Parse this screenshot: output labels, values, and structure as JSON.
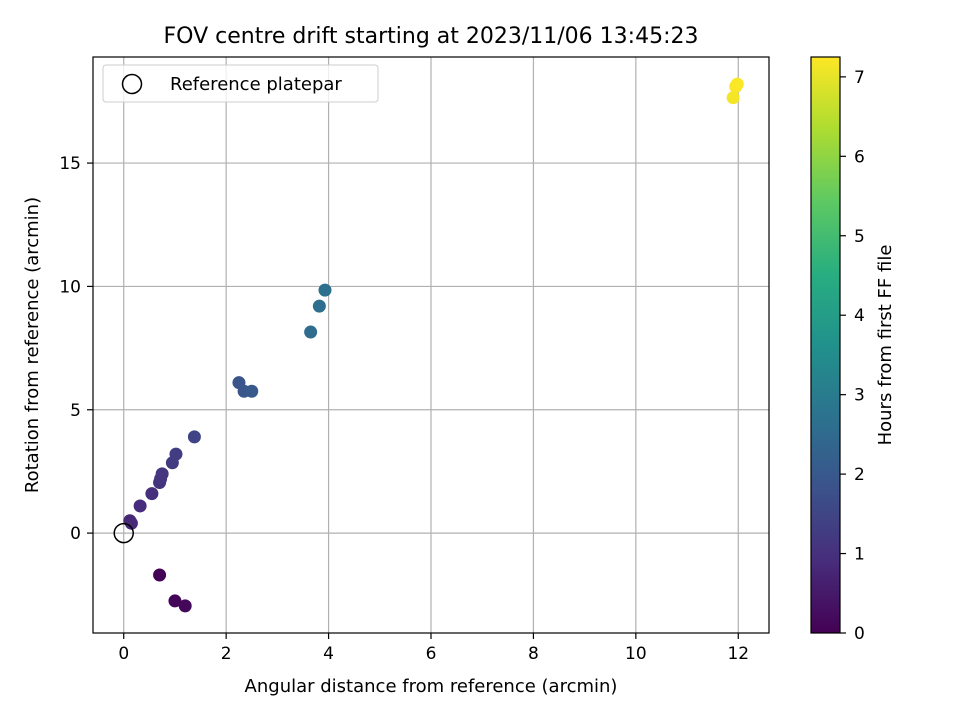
{
  "chart_data": {
    "type": "scatter",
    "title": "FOV centre drift starting at 2023/11/06 13:45:23",
    "xlabel": "Angular distance from reference (arcmin)",
    "ylabel": "Rotation from reference (arcmin)",
    "xlim": [
      -0.6,
      12.6
    ],
    "ylim": [
      -4.05,
      19.3
    ],
    "xticks": [
      0,
      2,
      4,
      6,
      8,
      10,
      12
    ],
    "yticks": [
      0,
      5,
      10,
      15
    ],
    "grid": true,
    "legend": {
      "placement": "top-left",
      "entries": [
        "Reference platepar"
      ]
    },
    "reference_point": {
      "x": 0,
      "y": 0
    },
    "colorbar": {
      "label": "Hours from first FF file",
      "colormap": "viridis",
      "range": [
        0,
        7.25
      ],
      "ticks": [
        0,
        1,
        2,
        3,
        4,
        5,
        6,
        7
      ]
    },
    "points": [
      {
        "x": 0.7,
        "y": -1.7,
        "hours": 0.05
      },
      {
        "x": 1.0,
        "y": -2.75,
        "hours": 0.1
      },
      {
        "x": 1.2,
        "y": -2.95,
        "hours": 0.15
      },
      {
        "x": 0.12,
        "y": 0.5,
        "hours": 0.8
      },
      {
        "x": 0.15,
        "y": 0.4,
        "hours": 0.82
      },
      {
        "x": 0.32,
        "y": 1.1,
        "hours": 0.9
      },
      {
        "x": 0.55,
        "y": 1.6,
        "hours": 0.95
      },
      {
        "x": 0.7,
        "y": 2.05,
        "hours": 1.05
      },
      {
        "x": 0.72,
        "y": 2.2,
        "hours": 1.1
      },
      {
        "x": 0.75,
        "y": 2.4,
        "hours": 1.15
      },
      {
        "x": 0.95,
        "y": 2.85,
        "hours": 1.25
      },
      {
        "x": 1.02,
        "y": 3.2,
        "hours": 1.3
      },
      {
        "x": 1.38,
        "y": 3.9,
        "hours": 1.45
      },
      {
        "x": 2.25,
        "y": 6.1,
        "hours": 1.9
      },
      {
        "x": 2.35,
        "y": 5.75,
        "hours": 1.95
      },
      {
        "x": 2.5,
        "y": 5.75,
        "hours": 2.0
      },
      {
        "x": 3.65,
        "y": 8.15,
        "hours": 2.55
      },
      {
        "x": 3.82,
        "y": 9.2,
        "hours": 2.6
      },
      {
        "x": 3.93,
        "y": 9.85,
        "hours": 2.65
      },
      {
        "x": 11.9,
        "y": 17.65,
        "hours": 7.15
      },
      {
        "x": 11.95,
        "y": 18.1,
        "hours": 7.2
      },
      {
        "x": 11.98,
        "y": 18.2,
        "hours": 7.22
      }
    ]
  }
}
